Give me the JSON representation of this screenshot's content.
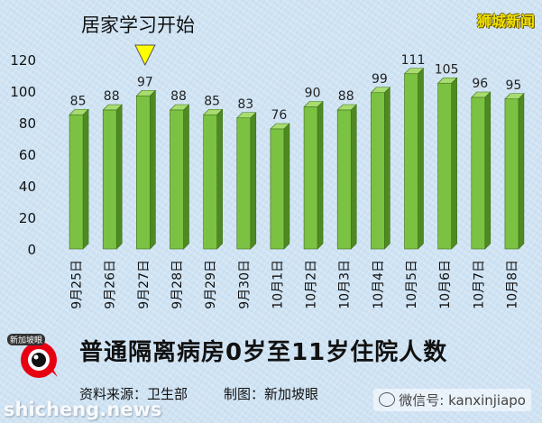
{
  "annotation": "居家学习开始",
  "brand": "狮城新闻",
  "footer": {
    "title": "普通隔离病房0岁至11岁住院人数",
    "source": "资料来源：卫生部",
    "maker": "制图：新加坡眼",
    "logo_text": "新加坡眼",
    "watermark_left": "shicheng.news",
    "watermark_right": "微信号: kanxinjiapo"
  },
  "colors": {
    "bar_front": "#7cc242",
    "bar_side": "#4e8a22",
    "bar_top": "#a8dc70",
    "marker": "#ffff00"
  },
  "chart_data": {
    "type": "bar",
    "title": "普通隔离病房0岁至11岁住院人数",
    "categories": [
      "9月25日",
      "9月26日",
      "9月27日",
      "9月28日",
      "9月29日",
      "9月30日",
      "10月1日",
      "10月2日",
      "10月3日",
      "10月4日",
      "10月5日",
      "10月6日",
      "10月7日",
      "10月8日"
    ],
    "values": [
      85,
      88,
      97,
      88,
      85,
      83,
      76,
      90,
      88,
      99,
      111,
      105,
      96,
      95
    ],
    "yticks": [
      0,
      20,
      40,
      60,
      80,
      100,
      120
    ],
    "ylim": [
      0,
      120
    ],
    "grid": false,
    "legend": "none",
    "annotation": {
      "category": "9月27日",
      "text": "居家学习开始",
      "marker": "down-triangle"
    }
  }
}
